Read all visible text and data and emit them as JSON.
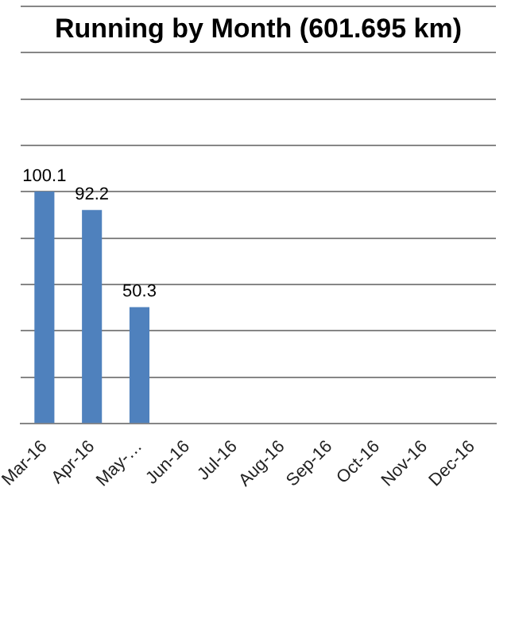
{
  "chart_data": {
    "type": "bar",
    "title": "Running by Month (601.695 km)",
    "categories": [
      "Mar-16",
      "Apr-16",
      "May-…",
      "Jun-16",
      "Jul-16",
      "Aug-16",
      "Sep-16",
      "Oct-16",
      "Nov-16",
      "Dec-16"
    ],
    "values": [
      100.1,
      92.2,
      50.3,
      null,
      null,
      null,
      null,
      null,
      null,
      null
    ],
    "color": "#4f81bd",
    "ylim": [
      0,
      180
    ],
    "yticks": [
      {
        "value": 0,
        "label": null
      },
      {
        "value": 20,
        "label": null
      },
      {
        "value": 40,
        "label": null
      },
      {
        "value": 60,
        "label": null
      },
      {
        "value": 80,
        "label": null
      },
      {
        "value": 100,
        "label": null
      },
      {
        "value": 120,
        "label": null
      },
      {
        "value": 140,
        "label": null
      },
      {
        "value": 160,
        "label": null
      },
      {
        "value": 180,
        "label": null
      }
    ],
    "grid": "y",
    "tick_labels": "x",
    "data_labels": true
  }
}
